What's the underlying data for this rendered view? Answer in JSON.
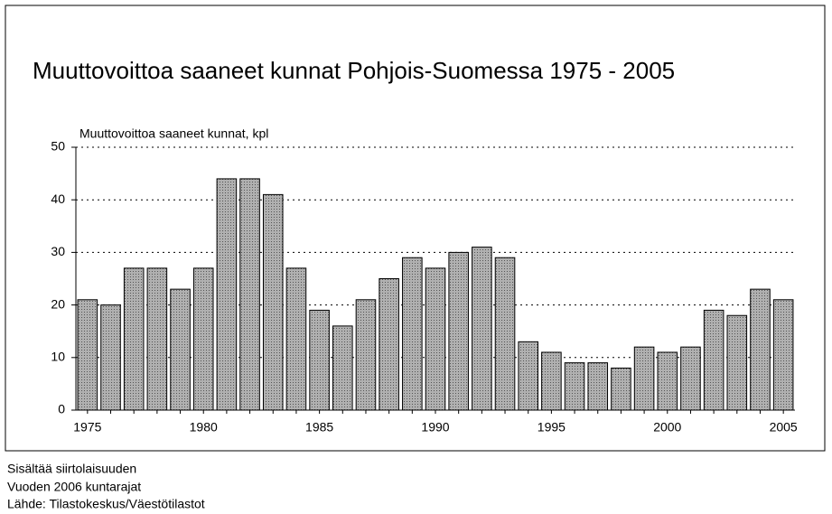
{
  "chart_data": {
    "type": "bar",
    "title": "Muuttovoittoa saaneet kunnat Pohjois-Suomessa 1975 - 2005",
    "ylabel": "Muuttovoittoa saaneet kunnat, kpl",
    "notes": [
      "Sisältää siirtolaisuuden",
      "Vuoden 2006 kuntarajat",
      "Lähde: Tilastokeskus/Väestötilastot"
    ],
    "categories": [
      "1975",
      null,
      null,
      null,
      null,
      "1980",
      null,
      null,
      null,
      null,
      "1985",
      null,
      null,
      null,
      null,
      "1990",
      null,
      null,
      null,
      null,
      "1995",
      null,
      null,
      null,
      null,
      "2000",
      null,
      null,
      null,
      null,
      "2005"
    ],
    "values": [
      21,
      20,
      27,
      27,
      23,
      27,
      44,
      44,
      41,
      27,
      19,
      16,
      21,
      25,
      29,
      27,
      30,
      31,
      29,
      13,
      11,
      9,
      9,
      8,
      12,
      11,
      12,
      19,
      18,
      23,
      21
    ],
    "color": "#a8a8a8",
    "ylim": [
      0,
      50
    ],
    "yticks": [
      0,
      10,
      20,
      30,
      40,
      50
    ],
    "grid": true
  }
}
